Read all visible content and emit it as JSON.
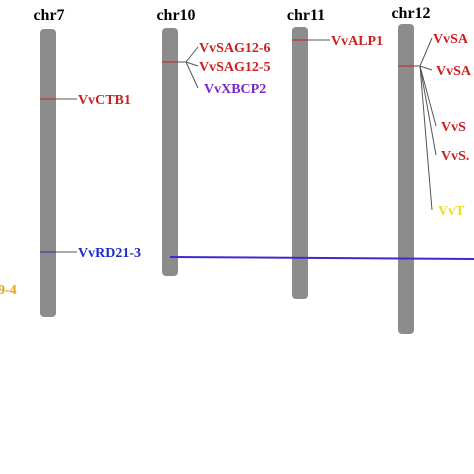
{
  "colors": {
    "chromosome": "#8c8c8c",
    "red_gene": "#cc1f1f",
    "blue_gene": "#1f2ac9",
    "purple_gene": "#7a26c7",
    "yellow_gene": "#e6e21a",
    "orange_gene": "#e3a21a",
    "link_line": "#3a2bd0",
    "leader_line": "#555555"
  },
  "chromosomes": [
    {
      "id": "chr7",
      "label": "chr7"
    },
    {
      "id": "chr10",
      "label": "chr10"
    },
    {
      "id": "chr11",
      "label": "chr11"
    },
    {
      "id": "chr12",
      "label": "chr12"
    }
  ],
  "genes": [
    {
      "id": "vvctb1",
      "label": "VvCTB1",
      "chromosome": "chr7",
      "color": "red"
    },
    {
      "id": "vvrd21-3",
      "label": "VvRD21-3",
      "chromosome": "chr7",
      "color": "blue"
    },
    {
      "id": "vvsag12-6",
      "label": "VvSAG12-6",
      "chromosome": "chr10",
      "color": "red"
    },
    {
      "id": "vvsag12-5",
      "label": "VvSAG12-5",
      "chromosome": "chr10",
      "color": "red"
    },
    {
      "id": "vvxbcp2",
      "label": "VvXBCP2",
      "chromosome": "chr10",
      "color": "purple"
    },
    {
      "id": "vvalp1",
      "label": "VvALP1",
      "chromosome": "chr11",
      "color": "red"
    },
    {
      "id": "chr12-gene-1",
      "label": "VvSA",
      "chromosome": "chr12",
      "color": "red"
    },
    {
      "id": "chr12-gene-2",
      "label": "VvSA",
      "chromosome": "chr12",
      "color": "red"
    },
    {
      "id": "chr12-gene-3",
      "label": "VvS",
      "chromosome": "chr12",
      "color": "red"
    },
    {
      "id": "chr12-gene-4",
      "label": "VvS.",
      "chromosome": "chr12",
      "color": "red"
    },
    {
      "id": "chr12-gene-5",
      "label": "VvT",
      "chromosome": "chr12",
      "color": "yellow"
    },
    {
      "id": "offscreen-gene",
      "label": "9-4",
      "chromosome": "",
      "color": "orange"
    }
  ]
}
